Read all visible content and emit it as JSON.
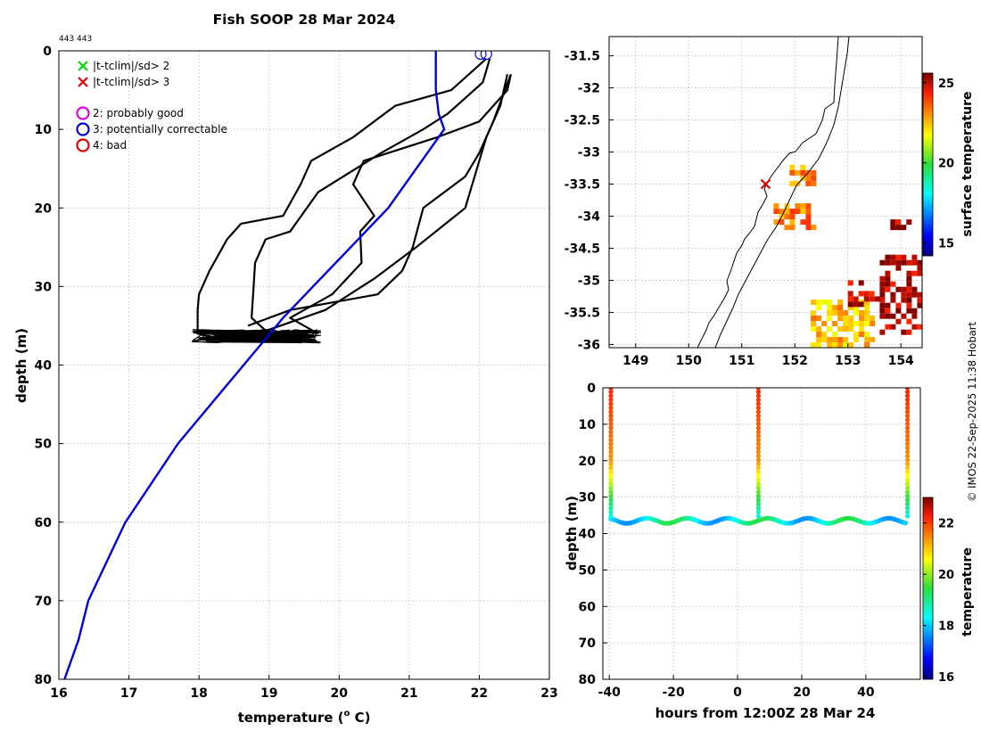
{
  "chart_data": [
    {
      "id": "profile",
      "type": "line",
      "title": "Fish SOOP 28 Mar 2024",
      "corner_label": "443 443",
      "xlabel": "temperature (",
      "xlabel_sup": "o",
      "xlabel_tail": " C)",
      "ylabel": "depth (m)",
      "xlim": [
        16,
        23
      ],
      "ylim": [
        0,
        80
      ],
      "y_reversed": true,
      "xticks": [
        "16",
        "17",
        "18",
        "19",
        "20",
        "21",
        "22",
        "23"
      ],
      "yticks": [
        "0",
        "10",
        "20",
        "30",
        "40",
        "50",
        "60",
        "70",
        "80"
      ],
      "grid": true,
      "legend_placement": "top-left",
      "legend": [
        {
          "marker": "x",
          "color": "#00dd00",
          "label": "|t-tclim|/sd> 2"
        },
        {
          "marker": "x",
          "color": "#e00000",
          "label": "|t-tclim|/sd> 3"
        },
        {
          "marker": "o",
          "color": "#e000e0",
          "label": "2: probably good"
        },
        {
          "marker": "o",
          "color": "#0000e0",
          "label": "3: potentially correctable"
        },
        {
          "marker": "o",
          "color": "#e00000",
          "label": "4: bad"
        }
      ],
      "climatology": {
        "name": "climatology",
        "color": "#0000dd",
        "x": [
          21.38,
          21.38,
          21.42,
          21.5,
          20.7,
          19.2,
          17.7,
          16.95,
          16.42,
          16.28,
          16.08
        ],
        "y": [
          0,
          5,
          8,
          10,
          20,
          34,
          50,
          60,
          70,
          75,
          80
        ]
      },
      "profiles": [
        {
          "name": "cast-1",
          "color": "#000000",
          "x": [
            22.1,
            21.6,
            20.8,
            20.2,
            19.6,
            19.45,
            19.2,
            18.6,
            18.4,
            18.15,
            18.0,
            17.98,
            17.98,
            18.5,
            19.5
          ],
          "y": [
            1,
            5,
            7,
            11,
            14,
            17,
            21,
            22,
            24,
            28,
            31,
            33,
            36,
            37,
            36.5
          ]
        },
        {
          "name": "cast-2",
          "color": "#000000",
          "x": [
            22.15,
            22.05,
            21.55,
            21.2,
            20.6,
            19.7,
            19.3,
            18.95,
            18.8,
            18.78,
            18.75,
            19.0,
            19.5
          ],
          "y": [
            1,
            4,
            8,
            10,
            13,
            18,
            23,
            24,
            27,
            30,
            34,
            36,
            36.5
          ]
        },
        {
          "name": "cast-3",
          "color": "#000000",
          "x": [
            22.45,
            22.4,
            22.0,
            21.4,
            20.35,
            20.2,
            20.5,
            20.3,
            20.32,
            19.9,
            19.3,
            19.7
          ],
          "y": [
            3,
            5,
            9,
            11,
            14,
            17,
            21,
            23,
            27,
            31,
            34,
            36
          ]
        },
        {
          "name": "cast-4",
          "color": "#000000",
          "x": [
            22.45,
            22.2,
            22.0,
            21.8,
            21.2,
            21.05,
            20.9,
            20.55,
            19.3,
            18.7
          ],
          "y": [
            3,
            9,
            13,
            16,
            20,
            25,
            28,
            31,
            33,
            35
          ]
        },
        {
          "name": "cast-5",
          "color": "#000000",
          "x": [
            22.4,
            22.3,
            22.1,
            22.0,
            21.8,
            21.1,
            20.5,
            19.8,
            19.0,
            18.5
          ],
          "y": [
            3,
            7,
            11,
            14,
            20,
            25,
            29,
            33,
            35.5,
            36
          ]
        }
      ],
      "bottom_scatter": {
        "xmin": 17.9,
        "xmax": 19.75,
        "ymin": 35.5,
        "ymax": 37.2
      },
      "flag_circles": [
        {
          "x": 22.02,
          "y": 0.4,
          "color": "#0000dd"
        },
        {
          "x": 22.1,
          "y": 0.4,
          "color": "#0000dd"
        }
      ]
    },
    {
      "id": "map",
      "type": "heatmap",
      "xlim": [
        148.5,
        154.4
      ],
      "ylim": [
        -36.05,
        -31.2
      ],
      "xticks": [
        "149",
        "150",
        "151",
        "152",
        "153",
        "154"
      ],
      "yticks": [
        "-31.5",
        "-32",
        "-32.5",
        "-33",
        "-33.5",
        "-34",
        "-34.5",
        "-35",
        "-35.5",
        "-36"
      ],
      "colorbar_label": "surface temperature",
      "colorbar_ticks": [
        "15",
        "20",
        "25"
      ],
      "colorbar_range": [
        14.2,
        25.6
      ],
      "cast_marker": {
        "lon": 151.45,
        "lat": -33.5,
        "color": "#e00000"
      },
      "sst_patches": [
        {
          "lon": [
            152.3,
            153.5
          ],
          "lat": [
            -36.05,
            -35.3
          ],
          "temp": 22.5
        },
        {
          "lon": [
            153.6,
            154.4
          ],
          "lat": [
            -35.8,
            -34.6
          ],
          "temp": 25.3
        },
        {
          "lon": [
            153.0,
            153.6
          ],
          "lat": [
            -35.4,
            -35.0
          ],
          "temp": 25.0
        },
        {
          "lon": [
            151.6,
            152.4
          ],
          "lat": [
            -34.2,
            -33.8
          ],
          "temp": 23.2
        },
        {
          "lon": [
            151.9,
            152.4
          ],
          "lat": [
            -33.5,
            -33.2
          ],
          "temp": 23.0
        },
        {
          "lon": [
            153.8,
            154.2
          ],
          "lat": [
            -34.2,
            -34.05
          ],
          "temp": 25.3
        }
      ]
    },
    {
      "id": "timeseries",
      "type": "scatter",
      "xlabel": "hours from 12:00Z 28 Mar 24",
      "ylabel": "depth (m)",
      "xlim": [
        -42,
        57
      ],
      "ylim": [
        0,
        80
      ],
      "y_reversed": true,
      "xticks": [
        "-40",
        "-20",
        "0",
        "20",
        "40"
      ],
      "yticks": [
        "0",
        "10",
        "20",
        "30",
        "40",
        "50",
        "60",
        "70",
        "80"
      ],
      "colorbar_label": "temperature",
      "colorbar_ticks": [
        "16",
        "18",
        "20",
        "22"
      ],
      "colorbar_range": [
        15.9,
        23.0
      ],
      "casts_hours": [
        -39.5,
        6.5,
        53.0
      ],
      "cast_surface_temp": 22.2,
      "bottom_depth_mean": 36.5,
      "bottom_amplitude": 0.7,
      "bottom_temp": 18.5
    }
  ],
  "side_note": "© IMOS 22-Sep-2025 11:38 Hobart"
}
